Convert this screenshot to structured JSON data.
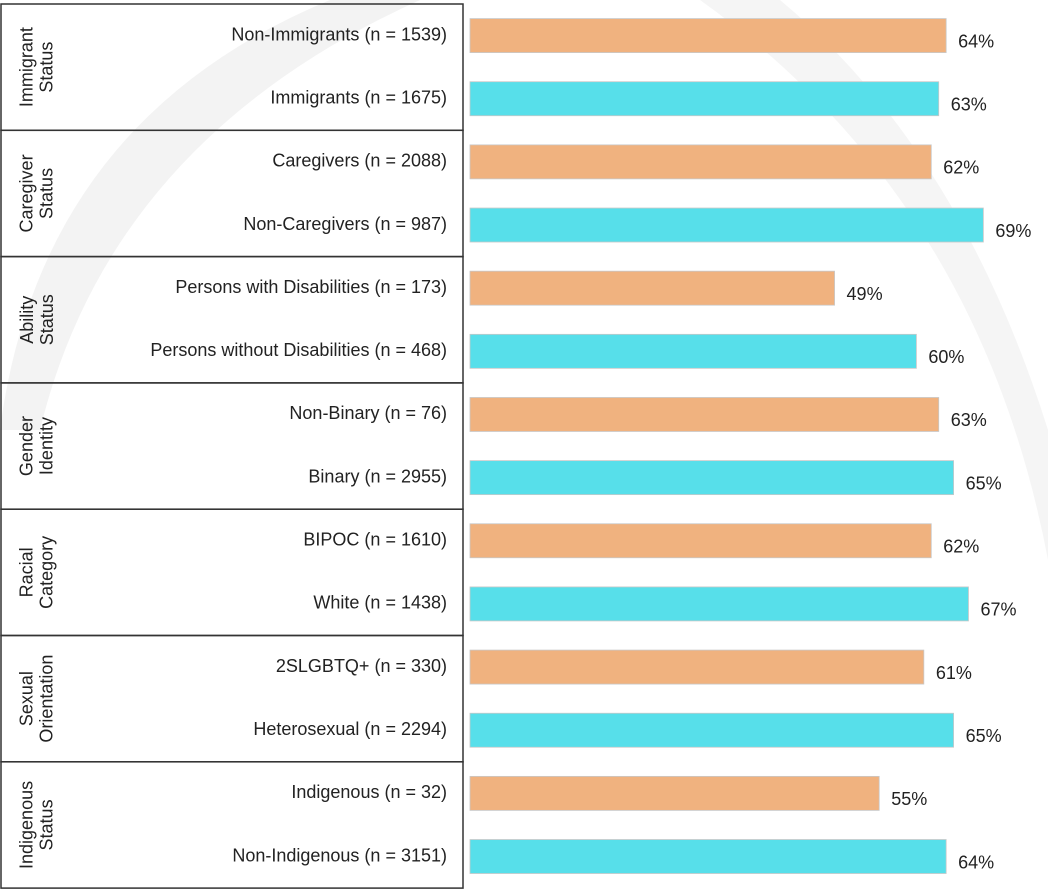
{
  "chart_data": {
    "type": "bar",
    "orientation": "horizontal",
    "groups": [
      [
        "Immigrant",
        "Status"
      ],
      [
        "Caregiver",
        "Status"
      ],
      [
        "Ability",
        "Status"
      ],
      [
        "Gender",
        "Identity"
      ],
      [
        "Racial",
        "Category"
      ],
      [
        "Sexual",
        "Orientation"
      ],
      [
        "Indigenous",
        "Status"
      ]
    ],
    "categories": [
      "Non-Immigrants (n = 1539)",
      "Immigrants (n = 1675)",
      "Caregivers (n = 2088)",
      "Non-Caregivers (n = 987)",
      "Persons with Disabilities (n = 173)",
      "Persons without Disabilities (n = 468)",
      "Non-Binary (n = 76)",
      "Binary (n = 2955)",
      "BIPOC (n = 1610)",
      "White (n = 1438)",
      "2SLGBTQ+ (n = 330)",
      "Heterosexual (n = 2294)",
      "Indigenous (n = 32)",
      "Non-Indigenous (n = 3151)"
    ],
    "values": [
      64,
      63,
      62,
      69,
      49,
      60,
      63,
      65,
      62,
      67,
      61,
      65,
      55,
      64
    ],
    "value_labels": [
      "64%",
      "63%",
      "62%",
      "69%",
      "49%",
      "60%",
      "63%",
      "65%",
      "62%",
      "67%",
      "61%",
      "65%",
      "55%",
      "64%"
    ],
    "colors": [
      "#f0b27f",
      "#57dfea"
    ]
  }
}
